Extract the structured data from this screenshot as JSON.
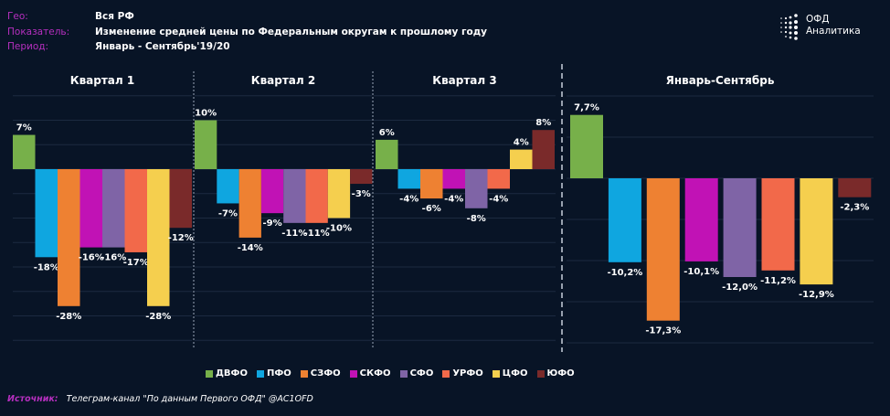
{
  "header": {
    "geo_label": "Гео:",
    "geo_value": "Вся РФ",
    "indicator_label": "Показатель:",
    "indicator_value": "Изменение средней цены по Федеральным округам к прошлому году",
    "period_label": "Период:",
    "period_value": "Январь - Сентябрь'19/20"
  },
  "logo": {
    "line1": "ОФД",
    "line2": "Аналитика"
  },
  "source": {
    "label": "Источник:",
    "value": "Телеграм-канал \"По данным Первого ОФД\" @AC1OFD"
  },
  "colors": {
    "background": "#081426",
    "accent_label": "#b62fbf",
    "ДВФО": "#77b04a",
    "ПФО": "#0fa6e0",
    "СЗФО": "#ee8132",
    "СКФО": "#c112b5",
    "СФО": "#7f64a6",
    "УРФО": "#f2694a",
    "ЦФО": "#f5cf4e",
    "ЮФО": "#7a2a2a"
  },
  "chart_data": [
    {
      "type": "bar",
      "title": "Квартал 1",
      "categories": [
        "ДВФО",
        "ПФО",
        "СЗФО",
        "СКФО",
        "СФО",
        "УРФО",
        "ЦФО",
        "ЮФО"
      ],
      "values": [
        7,
        -18,
        -28,
        -16,
        -16,
        -17,
        -28,
        -12
      ],
      "labels": [
        "7%",
        "-18%",
        "-28%",
        "-16%",
        "-16%",
        "-17%",
        "-28%",
        "-12%"
      ],
      "unit": "%",
      "ylim": [
        -35,
        15
      ],
      "grid": true
    },
    {
      "type": "bar",
      "title": "Квартал 2",
      "categories": [
        "ДВФО",
        "ПФО",
        "СЗФО",
        "СКФО",
        "СФО",
        "УРФО",
        "ЦФО",
        "ЮФО"
      ],
      "values": [
        10,
        -7,
        -14,
        -9,
        -11,
        -11,
        -10,
        -3
      ],
      "labels": [
        "10%",
        "-7%",
        "-14%",
        "-9%",
        "-11%",
        "-11%",
        "-10%",
        "-3%"
      ],
      "unit": "%",
      "ylim": [
        -35,
        15
      ],
      "grid": true
    },
    {
      "type": "bar",
      "title": "Квартал 3",
      "categories": [
        "ДВФО",
        "ПФО",
        "СЗФО",
        "СКФО",
        "СФО",
        "УРФО",
        "ЦФО",
        "ЮФО"
      ],
      "values": [
        6,
        -4,
        -6,
        -4,
        -8,
        -4,
        4,
        8
      ],
      "labels": [
        "6%",
        "-4%",
        "-6%",
        "-4%",
        "-8%",
        "-4%",
        "4%",
        "8%"
      ],
      "unit": "%",
      "ylim": [
        -35,
        15
      ],
      "grid": true
    },
    {
      "type": "bar",
      "title": "Январь-Сентябрь",
      "categories": [
        "ДВФО",
        "ПФО",
        "СЗФО",
        "СКФО",
        "СФО",
        "УРФО",
        "ЦФО",
        "ЮФО"
      ],
      "values": [
        7.7,
        -10.2,
        -17.3,
        -10.1,
        -12.0,
        -11.2,
        -12.9,
        -2.3
      ],
      "labels": [
        "7,7%",
        "-10,2%",
        "-17,3%",
        "-10,1%",
        "-12,0%",
        "-11,2%",
        "-12,9%",
        "-2,3%"
      ],
      "unit": "%",
      "ylim": [
        -20,
        10
      ],
      "grid": true
    }
  ],
  "legend": {
    "position": "bottom",
    "items": [
      "ДВФО",
      "ПФО",
      "СЗФО",
      "СКФО",
      "СФО",
      "УРФО",
      "ЦФО",
      "ЮФО"
    ]
  }
}
